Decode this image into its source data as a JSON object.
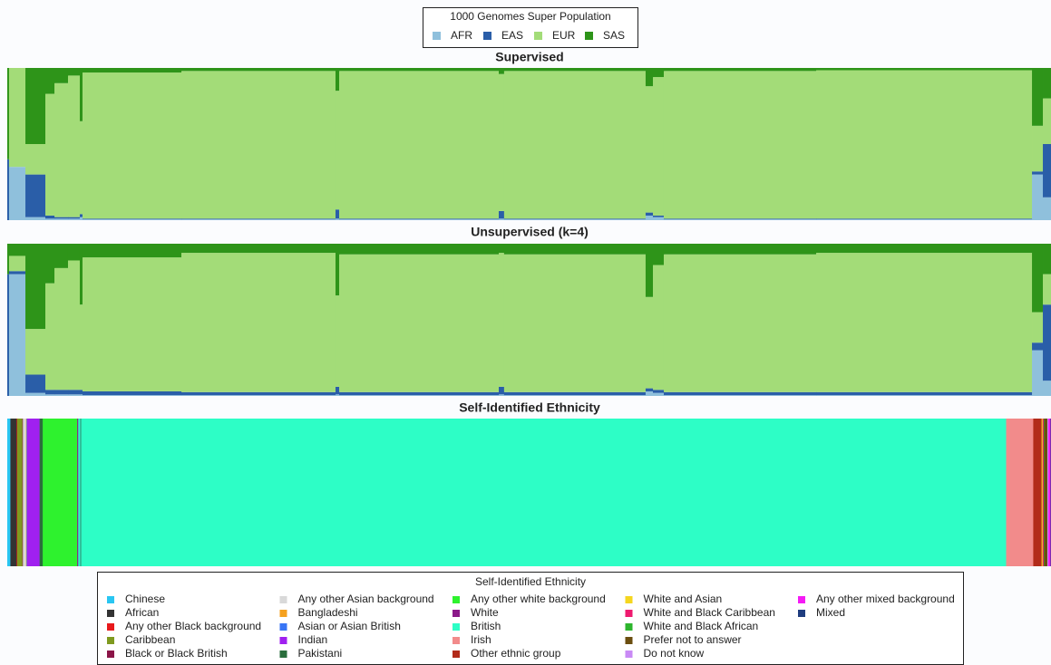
{
  "chart_data": {
    "type": "admixture",
    "legend_title": "1000 Genomes Super Population",
    "populations": [
      {
        "name": "AFR",
        "color": "#8fc0dc"
      },
      {
        "name": "EAS",
        "color": "#2a5ea8"
      },
      {
        "name": "EUR",
        "color": "#a3dc78"
      },
      {
        "name": "SAS",
        "color": "#2e9419"
      }
    ],
    "xlim": [
      0,
      100
    ],
    "panels": [
      {
        "title": "Supervised",
        "x": [
          0,
          0.17,
          1.74,
          3.65,
          4.52,
          5.82,
          6.95,
          7.21,
          16.68,
          31.45,
          31.8,
          47.09,
          47.6,
          61.16,
          61.86,
          62.9,
          77.5,
          98.18,
          99.22
        ],
        "values": [
          [
            0,
            0.35,
            0.02,
            0.01,
            0.01,
            0.01,
            0.02,
            0.005,
            0.005,
            0.01,
            0.005,
            0.01,
            0.005,
            0.03,
            0.02,
            0.005,
            0.005,
            0.3,
            0.15
          ],
          [
            0.4,
            0,
            0.28,
            0.02,
            0.01,
            0.01,
            0.02,
            0.005,
            0.005,
            0.06,
            0.005,
            0.05,
            0.005,
            0.02,
            0.01,
            0.005,
            0.005,
            0.02,
            0.35
          ],
          [
            0,
            0.65,
            0.2,
            0.8,
            0.88,
            0.93,
            0.61,
            0.96,
            0.97,
            0.78,
            0.97,
            0.9,
            0.97,
            0.83,
            0.91,
            0.97,
            0.975,
            0.3,
            0.3
          ],
          [
            0.6,
            0,
            0.5,
            0.17,
            0.1,
            0.05,
            0.35,
            0.03,
            0.02,
            0.15,
            0.02,
            0.04,
            0.02,
            0.12,
            0.06,
            0.02,
            0.015,
            0.38,
            0.2
          ]
        ]
      },
      {
        "title": "Unsupervised (k=4)",
        "x": [
          0,
          0.17,
          1.74,
          3.65,
          4.52,
          5.82,
          6.95,
          7.21,
          16.68,
          31.45,
          31.8,
          47.09,
          47.6,
          61.16,
          61.86,
          62.9,
          77.5,
          98.18,
          99.22
        ],
        "values": [
          [
            0,
            0.8,
            0.02,
            0.01,
            0.01,
            0.01,
            0.01,
            0.005,
            0.005,
            0.01,
            0.005,
            0.01,
            0.005,
            0.03,
            0.02,
            0.005,
            0.005,
            0.3,
            0.1
          ],
          [
            0.8,
            0.02,
            0.12,
            0.03,
            0.03,
            0.03,
            0.03,
            0.025,
            0.02,
            0.05,
            0.02,
            0.05,
            0.02,
            0.02,
            0.02,
            0.02,
            0.02,
            0.05,
            0.5
          ],
          [
            0,
            0.1,
            0.3,
            0.7,
            0.8,
            0.85,
            0.56,
            0.88,
            0.915,
            0.6,
            0.905,
            0.88,
            0.905,
            0.6,
            0.82,
            0.905,
            0.915,
            0.2,
            0.2
          ],
          [
            0.2,
            0.08,
            0.56,
            0.26,
            0.16,
            0.11,
            0.4,
            0.09,
            0.06,
            0.34,
            0.07,
            0.06,
            0.07,
            0.35,
            0.14,
            0.07,
            0.06,
            0.45,
            0.2
          ]
        ]
      }
    ],
    "ethnicity": {
      "title": "Self-Identified Ethnicity",
      "legend_title": "Self-Identified Ethnicity",
      "series": [
        {
          "name": "Chinese",
          "color": "#29c6f2",
          "value": 0.3
        },
        {
          "name": "African",
          "color": "#333333",
          "value": 0.6
        },
        {
          "name": "Any other Black background",
          "color": "#e8191c",
          "value": 0.05
        },
        {
          "name": "Caribbean",
          "color": "#7f9a1f",
          "value": 0.5
        },
        {
          "name": "Black or Black British",
          "color": "#8b1447",
          "value": 0.05
        },
        {
          "name": "Any other Asian background",
          "color": "#d9d9d9",
          "value": 0.3
        },
        {
          "name": "Bangladeshi",
          "color": "#f5a11f",
          "value": 0.05
        },
        {
          "name": "Asian or Asian British",
          "color": "#3875f5",
          "value": 0.05
        },
        {
          "name": "Indian",
          "color": "#a020f0",
          "value": 1.2
        },
        {
          "name": "Pakistani",
          "color": "#2a6e3c",
          "value": 0.3
        },
        {
          "name": "Any other white background",
          "color": "#2ef22e",
          "value": 3.3
        },
        {
          "name": "White",
          "color": "#8b1a89",
          "value": 0.1
        },
        {
          "name": "British",
          "color": "#2dfec6",
          "value": 88.9
        },
        {
          "name": "Irish",
          "color": "#f28b8b",
          "value": 2.6
        },
        {
          "name": "Other ethnic group",
          "color": "#b22b1a",
          "value": 0.8
        },
        {
          "name": "White and Asian",
          "color": "#f5d61f",
          "value": 0.1
        },
        {
          "name": "White and Black Caribbean",
          "color": "#ef1a6f",
          "value": 0.1
        },
        {
          "name": "White and Black African",
          "color": "#2db52d",
          "value": 0.05
        },
        {
          "name": "Prefer not to answer",
          "color": "#6b4e10",
          "value": 0.3
        },
        {
          "name": "Do not know",
          "color": "#c98af5",
          "value": 0.1
        },
        {
          "name": "Any other mixed background",
          "color": "#f51af5",
          "value": 0.2
        },
        {
          "name": "Mixed",
          "color": "#1f3d7f",
          "value": 0.05
        }
      ]
    }
  }
}
